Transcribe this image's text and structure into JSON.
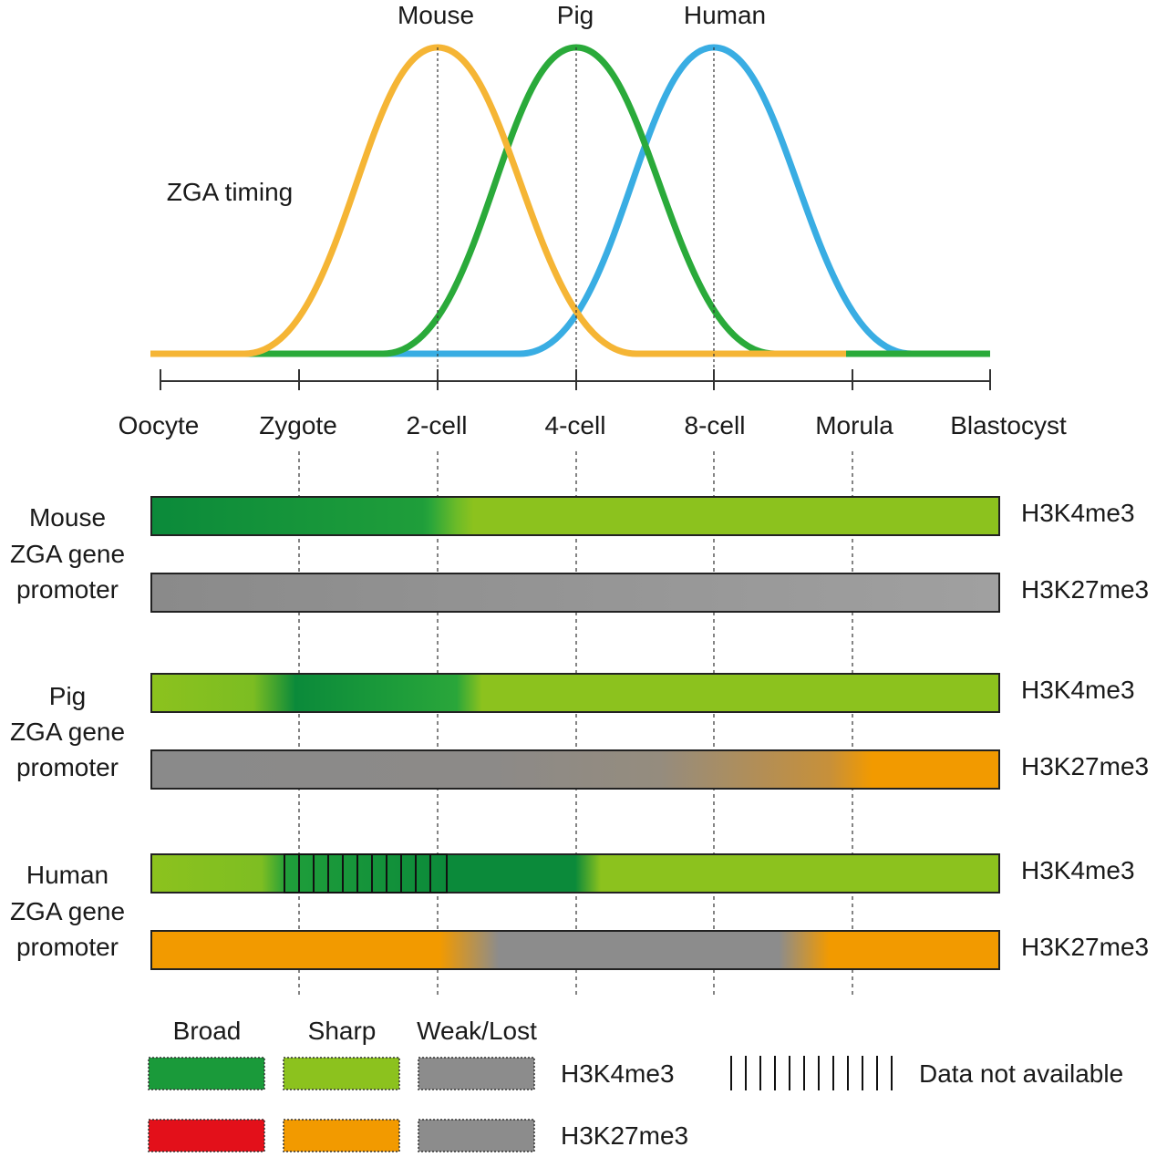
{
  "curve_labels": [
    "Mouse",
    "Pig",
    "Human"
  ],
  "zga_label": "ZGA timing",
  "stages": [
    "Oocyte",
    "Zygote",
    "2-cell",
    "4-cell",
    "8-cell",
    "Morula",
    "Blastocyst"
  ],
  "species_blocks": [
    {
      "lines": [
        "Mouse",
        "ZGA gene",
        "promoter"
      ]
    },
    {
      "lines": [
        "Pig",
        "ZGA gene",
        "promoter"
      ]
    },
    {
      "lines": [
        "Human",
        "ZGA gene",
        "promoter"
      ]
    }
  ],
  "mark_labels": {
    "h3k4": "H3K4me3",
    "h3k27": "H3K27me3"
  },
  "legend": {
    "headers": [
      "Broad",
      "Sharp",
      "Weak/Lost"
    ],
    "row1_label": "H3K4me3",
    "row2_label": "H3K27me3",
    "na_label": "Data not available"
  },
  "colors": {
    "mouse": "#f5b535",
    "pig": "#2aaa3a",
    "human": "#39ade3",
    "broad_h3k4": "#1a9a3a",
    "sharp_h3k4": "#8cc21e",
    "weak": "#8c8c8c",
    "broad_h3k27": "#e3101a",
    "sharp_h3k27": "#f29a00"
  }
}
